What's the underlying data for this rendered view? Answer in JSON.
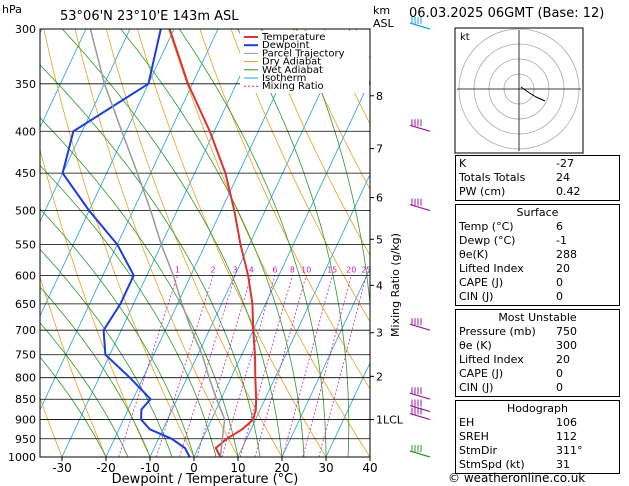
{
  "header": {
    "location": "53°06'N  23°10'E  143m  ASL",
    "date": "06.03.2025  06GMT  (Base: 12)",
    "hpa_label": "hPa",
    "km_label": "km",
    "asl_label": "ASL"
  },
  "chart_data": {
    "type": "line",
    "title": "53°06'N  23°10'E  143m  ASL",
    "xlabel": "Dewpoint / Temperature (°C)",
    "ylabel": "hPa",
    "y2label": "Mixing Ratio (g/kg)",
    "xlim": [
      -35,
      40
    ],
    "ylim": [
      1000,
      300
    ],
    "x_ticks": [
      -30,
      -20,
      -10,
      0,
      10,
      20,
      30,
      40
    ],
    "pressure_levels": [
      300,
      350,
      400,
      450,
      500,
      550,
      600,
      650,
      700,
      750,
      800,
      850,
      900,
      950,
      1000
    ],
    "km_ticks": [
      {
        "label": "8",
        "p": 362
      },
      {
        "label": "7",
        "p": 420
      },
      {
        "label": "6",
        "p": 482
      },
      {
        "label": "5",
        "p": 542
      },
      {
        "label": "4",
        "p": 617
      },
      {
        "label": "3",
        "p": 705
      },
      {
        "label": "2",
        "p": 797
      },
      {
        "label": "1LCL",
        "p": 900
      }
    ],
    "mixing_ratio_labels": [
      "1",
      "2",
      "3",
      "4",
      "6",
      "8",
      "10",
      "15",
      "20",
      "25"
    ],
    "mixing_ratio_values": [
      1,
      2,
      3,
      4,
      6,
      8,
      10,
      15,
      20,
      25
    ],
    "legend": [
      "Temperature",
      "Dewpoint",
      "Parcel Trajectory",
      "Dry Adiabat",
      "Wet Adiabat",
      "Isotherm",
      "Mixing Ratio"
    ],
    "series": [
      {
        "name": "Temperature",
        "color": "#e03030",
        "points": [
          [
            1000,
            6
          ],
          [
            975,
            4
          ],
          [
            950,
            5.5
          ],
          [
            925,
            8
          ],
          [
            900,
            9.5
          ],
          [
            875,
            9
          ],
          [
            850,
            8
          ],
          [
            800,
            5.5
          ],
          [
            750,
            3
          ],
          [
            700,
            0
          ],
          [
            650,
            -3
          ],
          [
            600,
            -7
          ],
          [
            550,
            -12
          ],
          [
            500,
            -17
          ],
          [
            450,
            -23
          ],
          [
            400,
            -31
          ],
          [
            350,
            -41
          ],
          [
            300,
            -51
          ]
        ]
      },
      {
        "name": "Dewpoint",
        "color": "#1e3cd8",
        "points": [
          [
            1000,
            -1
          ],
          [
            975,
            -3
          ],
          [
            950,
            -7
          ],
          [
            925,
            -13
          ],
          [
            900,
            -16
          ],
          [
            875,
            -17
          ],
          [
            850,
            -16
          ],
          [
            800,
            -23
          ],
          [
            750,
            -31
          ],
          [
            700,
            -34
          ],
          [
            650,
            -33
          ],
          [
            600,
            -33
          ],
          [
            550,
            -40
          ],
          [
            500,
            -50
          ],
          [
            450,
            -60
          ],
          [
            400,
            -62
          ],
          [
            350,
            -50
          ],
          [
            300,
            -53
          ]
        ]
      },
      {
        "name": "Parcel Trajectory",
        "color": "#999999",
        "points": [
          [
            1000,
            6
          ],
          [
            950,
            4.5
          ],
          [
            900,
            3
          ],
          [
            850,
            -1
          ],
          [
            800,
            -5
          ],
          [
            750,
            -9
          ],
          [
            700,
            -14
          ],
          [
            650,
            -19
          ],
          [
            600,
            -24
          ],
          [
            550,
            -30
          ],
          [
            500,
            -36
          ],
          [
            450,
            -43
          ],
          [
            400,
            -51
          ],
          [
            350,
            -60
          ],
          [
            300,
            -69
          ]
        ]
      }
    ]
  },
  "hodograph": {
    "label": "kt"
  },
  "indices": [
    {
      "label": "K",
      "value": "-27"
    },
    {
      "label": "Totals Totals",
      "value": "24"
    },
    {
      "label": "PW (cm)",
      "value": "0.42"
    }
  ],
  "surface": {
    "title": "Surface",
    "rows": [
      {
        "label": "Temp (°C)",
        "value": "6"
      },
      {
        "label": "Dewp (°C)",
        "value": "-1"
      },
      {
        "label": "θe(K)",
        "value": "288"
      },
      {
        "label": "Lifted Index",
        "value": "20"
      },
      {
        "label": "CAPE (J)",
        "value": "0"
      },
      {
        "label": "CIN (J)",
        "value": "0"
      }
    ]
  },
  "most_unstable": {
    "title": "Most Unstable",
    "rows": [
      {
        "label": "Pressure (mb)",
        "value": "750"
      },
      {
        "label": "θe (K)",
        "value": "300"
      },
      {
        "label": "Lifted Index",
        "value": "20"
      },
      {
        "label": "CAPE (J)",
        "value": "0"
      },
      {
        "label": "CIN (J)",
        "value": "0"
      }
    ]
  },
  "hodograph_table": {
    "title": "Hodograph",
    "rows": [
      {
        "label": "EH",
        "value": "106"
      },
      {
        "label": "SREH",
        "value": "112"
      },
      {
        "label": "StmDir",
        "value": "311°"
      },
      {
        "label": "StmSpd (kt)",
        "value": "31"
      }
    ]
  },
  "footer": "© weatheronline.co.uk",
  "colors": {
    "temperature": "#e03030",
    "dewpoint": "#1e3cd8",
    "parcel": "#999999",
    "dry_adiabat": "#e8a020",
    "wet_adiabat": "#2a9a2a",
    "isotherm": "#20a0e0",
    "mixing_ratio": "#d020b0",
    "wind_barbs": "#9a1aa0"
  }
}
